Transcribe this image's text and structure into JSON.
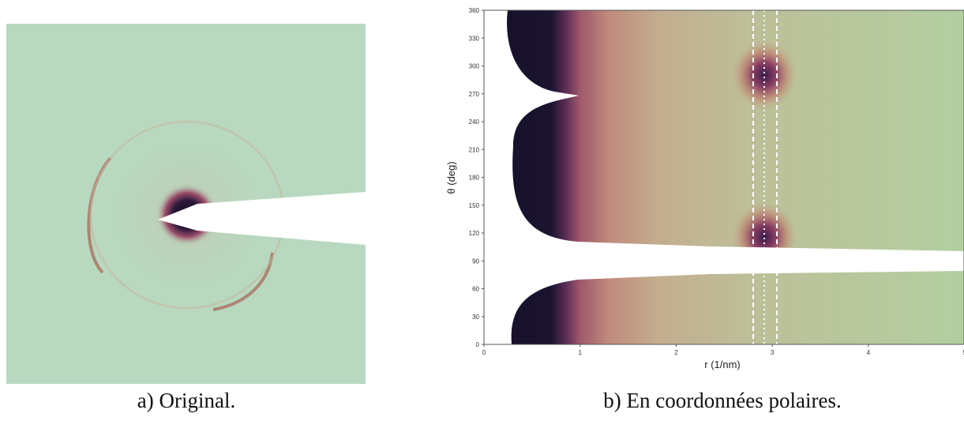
{
  "panel_a": {
    "caption": "a) Original."
  },
  "panel_b": {
    "caption": "b) En coordonnées polaires.",
    "x_label": "r (1/nm)",
    "y_label": "θ (deg)",
    "xlim": [
      0,
      5
    ],
    "ylim": [
      0,
      360
    ],
    "xticks": [
      0,
      1,
      2,
      3,
      4,
      5
    ],
    "yticks": [
      0,
      30,
      60,
      90,
      120,
      150,
      180,
      210,
      240,
      270,
      300,
      330,
      360
    ]
  }
}
